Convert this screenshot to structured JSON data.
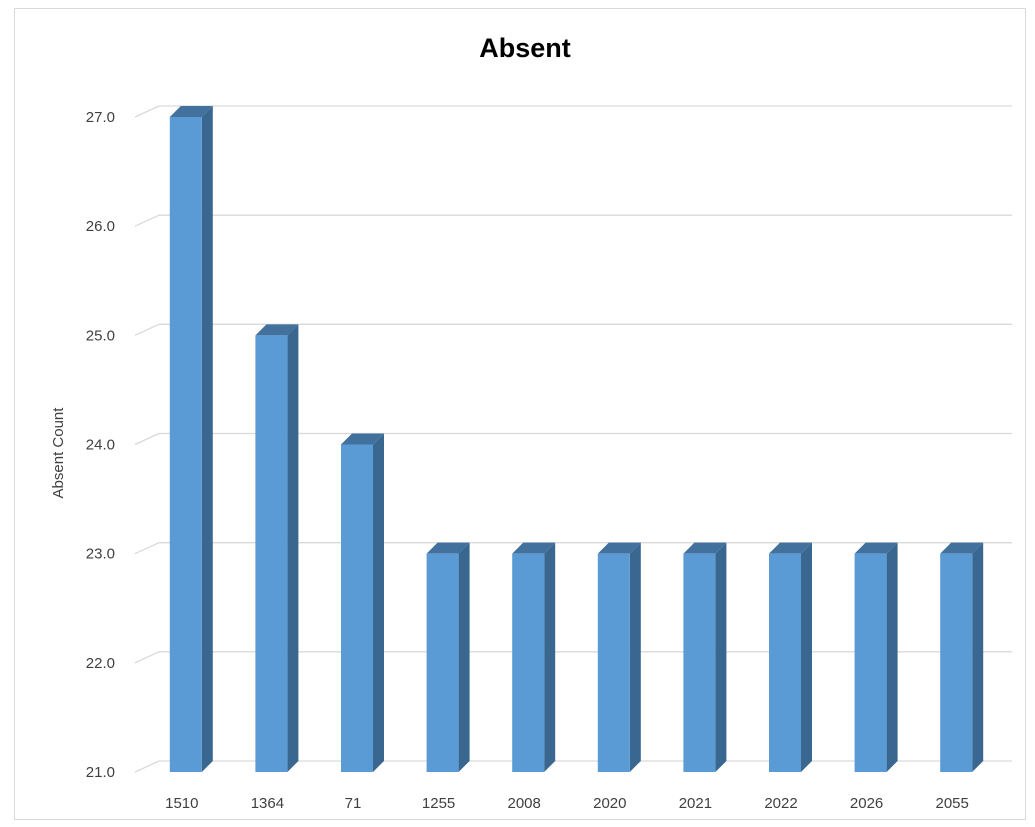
{
  "chart_data": {
    "type": "bar",
    "title": "Absent",
    "xlabel": "",
    "ylabel": "Absent Count",
    "categories": [
      "1510",
      "1364",
      "71",
      "1255",
      "2008",
      "2020",
      "2021",
      "2022",
      "2026",
      "2055"
    ],
    "values": [
      27,
      25,
      24,
      23,
      23,
      23,
      23,
      23,
      23,
      23
    ],
    "ylim": [
      21,
      27
    ],
    "yticks": [
      "21.0",
      "22.0",
      "23.0",
      "24.0",
      "25.0",
      "26.0",
      "27.0"
    ],
    "grid": true,
    "legend": "none",
    "style": "3d-column"
  },
  "colors": {
    "bar_front": "#5b9bd5",
    "bar_side": "#3a6790",
    "bar_top": "#41719c",
    "grid": "#d9d9d9"
  }
}
